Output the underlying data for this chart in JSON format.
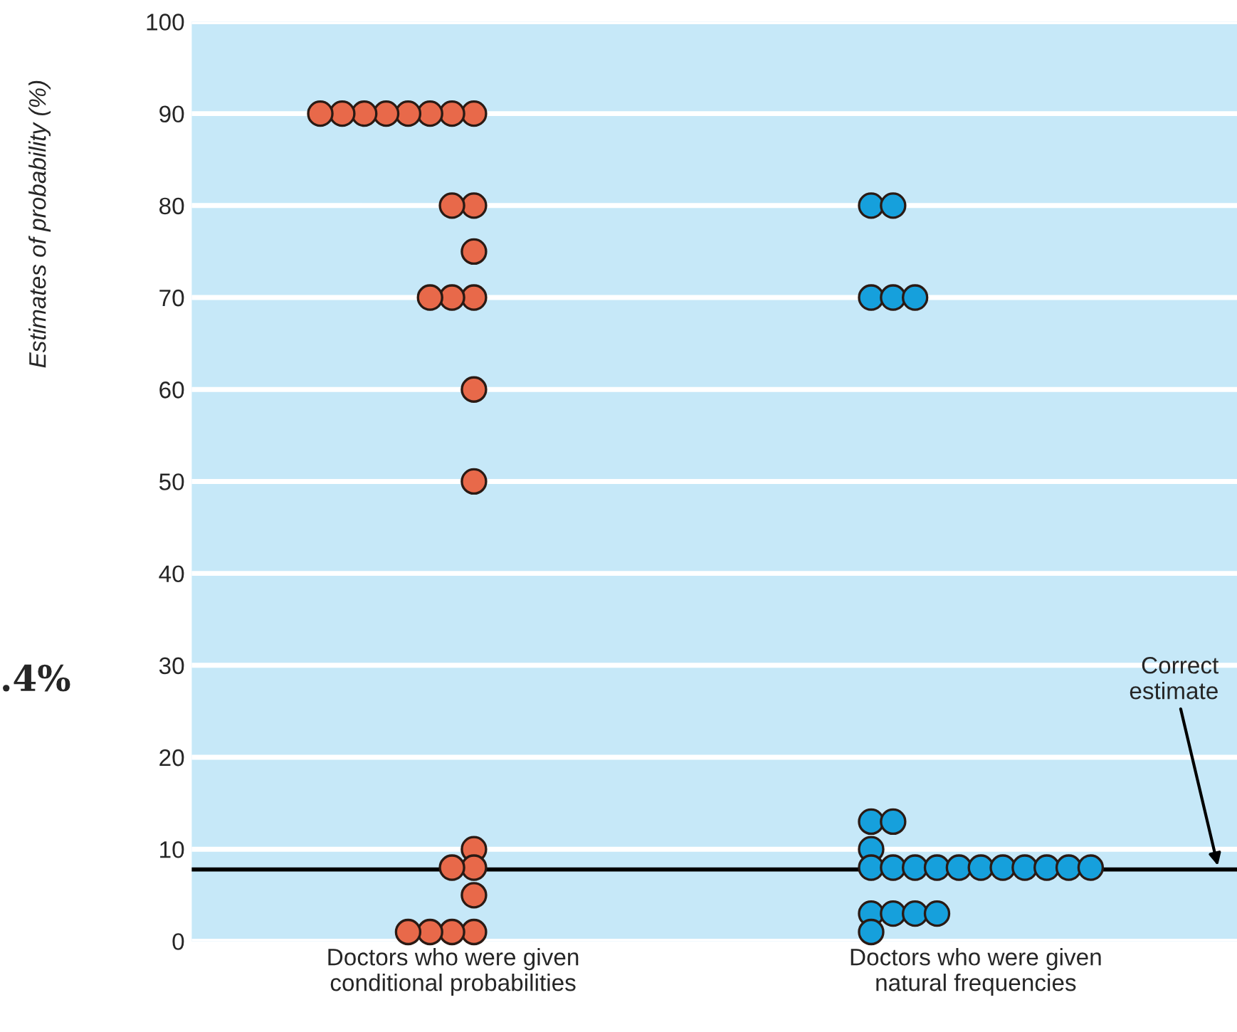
{
  "chart_data": {
    "type": "scatter",
    "categories": [
      "Doctors who were given\nconditional probabilities",
      "Doctors who were given\nnatural frequencies"
    ],
    "ylabel": "Estimates of probability (%)",
    "ylim": [
      0,
      100
    ],
    "yticks": [
      0,
      10,
      20,
      30,
      40,
      50,
      60,
      70,
      80,
      90,
      100
    ],
    "grid": "y",
    "marker": "circle",
    "legend": false,
    "series": [
      {
        "color": "#e8694a",
        "x": [
          "Doctors who were given\nconditional probabilities",
          "Doctors who were given\nconditional probabilities",
          "Doctors who were given\nconditional probabilities",
          "Doctors who were given\nconditional probabilities",
          "Doctors who were given\nconditional probabilities",
          "Doctors who were given\nconditional probabilities",
          "Doctors who were given\nconditional probabilities",
          "Doctors who were given\nconditional probabilities",
          "Doctors who were given\nconditional probabilities",
          "Doctors who were given\nconditional probabilities",
          "Doctors who were given\nconditional probabilities",
          "Doctors who were given\nconditional probabilities",
          "Doctors who were given\nconditional probabilities",
          "Doctors who were given\nconditional probabilities",
          "Doctors who were given\nconditional probabilities",
          "Doctors who were given\nconditional probabilities",
          "Doctors who were given\nconditional probabilities",
          "Doctors who were given\nconditional probabilities",
          "Doctors who were given\nconditional probabilities",
          "Doctors who were given\nconditional probabilities",
          "Doctors who were given\nconditional probabilities",
          "Doctors who were given\nconditional probabilities",
          "Doctors who were given\nconditional probabilities",
          "Doctors who were given\nconditional probabilities"
        ],
        "values": [
          90,
          90,
          90,
          90,
          90,
          90,
          90,
          90,
          80,
          80,
          75,
          70,
          70,
          70,
          60,
          50,
          10,
          8,
          8,
          5,
          1,
          1,
          1,
          1
        ]
      },
      {
        "color": "#16a0dc",
        "x": [
          "Doctors who were given\nnatural frequencies",
          "Doctors who were given\nnatural frequencies",
          "Doctors who were given\nnatural frequencies",
          "Doctors who were given\nnatural frequencies",
          "Doctors who were given\nnatural frequencies",
          "Doctors who were given\nnatural frequencies",
          "Doctors who were given\nnatural frequencies",
          "Doctors who were given\nnatural frequencies",
          "Doctors who were given\nnatural frequencies",
          "Doctors who were given\nnatural frequencies",
          "Doctors who were given\nnatural frequencies",
          "Doctors who were given\nnatural frequencies",
          "Doctors who were given\nnatural frequencies",
          "Doctors who were given\nnatural frequencies",
          "Doctors who were given\nnatural frequencies",
          "Doctors who were given\nnatural frequencies",
          "Doctors who were given\nnatural frequencies",
          "Doctors who were given\nnatural frequencies",
          "Doctors who were given\nnatural frequencies",
          "Doctors who were given\nnatural frequencies",
          "Doctors who were given\nnatural frequencies",
          "Doctors who were given\nnatural frequencies",
          "Doctors who were given\nnatural frequencies",
          "Doctors who were given\nnatural frequencies"
        ],
        "values": [
          80,
          80,
          70,
          70,
          70,
          13,
          13,
          10,
          8,
          8,
          8,
          8,
          8,
          8,
          8,
          8,
          8,
          8,
          8,
          3,
          3,
          3,
          3,
          1
        ]
      }
    ],
    "ref_lines": [
      {
        "axis": "y",
        "value": 7.8,
        "label": "Correct\nestimate",
        "color": "#000000"
      }
    ],
    "annotations": [
      ".4%"
    ]
  }
}
